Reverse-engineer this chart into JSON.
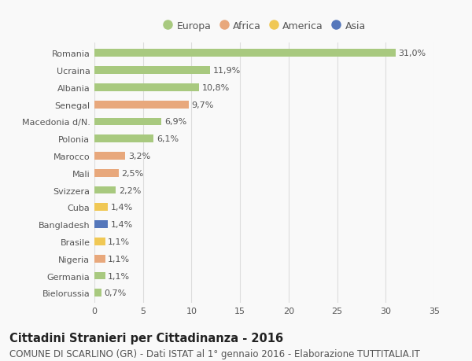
{
  "categories": [
    "Romania",
    "Ucraina",
    "Albania",
    "Senegal",
    "Macedonia d/N.",
    "Polonia",
    "Marocco",
    "Mali",
    "Svizzera",
    "Cuba",
    "Bangladesh",
    "Brasile",
    "Nigeria",
    "Germania",
    "Bielorussia"
  ],
  "values": [
    31.0,
    11.9,
    10.8,
    9.7,
    6.9,
    6.1,
    3.2,
    2.5,
    2.2,
    1.4,
    1.4,
    1.1,
    1.1,
    1.1,
    0.7
  ],
  "labels": [
    "31,0%",
    "11,9%",
    "10,8%",
    "9,7%",
    "6,9%",
    "6,1%",
    "3,2%",
    "2,5%",
    "2,2%",
    "1,4%",
    "1,4%",
    "1,1%",
    "1,1%",
    "1,1%",
    "0,7%"
  ],
  "continents": [
    "Europa",
    "Europa",
    "Europa",
    "Africa",
    "Europa",
    "Europa",
    "Africa",
    "Africa",
    "Europa",
    "America",
    "Asia",
    "America",
    "Africa",
    "Europa",
    "Europa"
  ],
  "continent_colors": {
    "Europa": "#a8c97f",
    "Africa": "#e8a87c",
    "America": "#f0c855",
    "Asia": "#5577bb"
  },
  "legend_order": [
    "Europa",
    "Africa",
    "America",
    "Asia"
  ],
  "title": "Cittadini Stranieri per Cittadinanza - 2016",
  "subtitle": "COMUNE DI SCARLINO (GR) - Dati ISTAT al 1° gennaio 2016 - Elaborazione TUTTITALIA.IT",
  "xlim": [
    0,
    35
  ],
  "xticks": [
    0,
    5,
    10,
    15,
    20,
    25,
    30,
    35
  ],
  "background_color": "#f9f9f9",
  "grid_color": "#dddddd",
  "bar_height": 0.45,
  "title_fontsize": 10.5,
  "subtitle_fontsize": 8.5,
  "label_fontsize": 8,
  "tick_fontsize": 8,
  "legend_fontsize": 9
}
